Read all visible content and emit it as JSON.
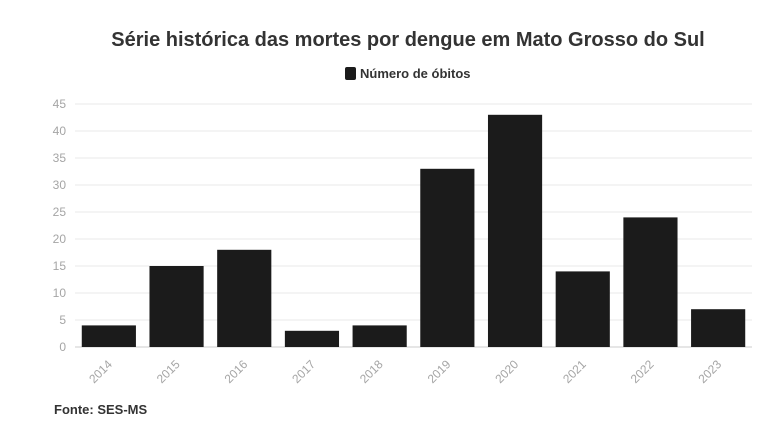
{
  "chart_data": {
    "type": "bar",
    "title": "Série histórica das mortes por dengue em Mato Grosso do Sul",
    "categories": [
      "2014",
      "2015",
      "2016",
      "2017",
      "2018",
      "2019",
      "2020",
      "2021",
      "2022",
      "2023"
    ],
    "series": [
      {
        "name": "Número de óbitos",
        "color": "#1b1b1b",
        "values": [
          4,
          15,
          18,
          3,
          4,
          33,
          43,
          14,
          24,
          7
        ]
      }
    ],
    "ylim": [
      0,
      45
    ],
    "yticks": [
      0,
      5,
      10,
      15,
      20,
      25,
      30,
      35,
      40,
      45
    ],
    "grid": true,
    "legend": "top-center",
    "source": "Fonte: SES-MS",
    "colors": {
      "bar": "#1b1b1b",
      "grid": "#e9e9e9",
      "tick_text": "#a5a5a5",
      "text": "#333333"
    }
  }
}
